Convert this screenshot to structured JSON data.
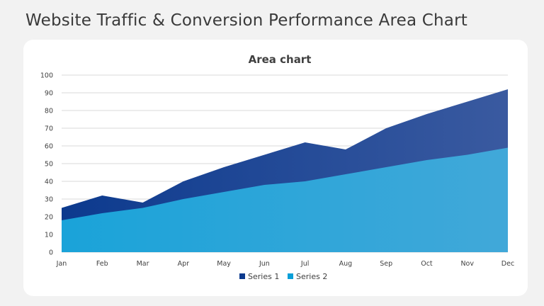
{
  "slide": {
    "title": "Website Traffic & Conversion Performance Area Chart"
  },
  "colors": {
    "series1": "#0c3a8e",
    "series2": "#0a9fd8",
    "grid": "#d9d9d9",
    "background": "#f2f2f2",
    "card": "#ffffff"
  },
  "chart_data": {
    "type": "area",
    "title": "Area chart",
    "xlabel": "",
    "ylabel": "",
    "categories": [
      "Jan",
      "Feb",
      "Mar",
      "Apr",
      "May",
      "Jun",
      "Jul",
      "Aug",
      "Sep",
      "Oct",
      "Nov",
      "Dec"
    ],
    "series": [
      {
        "name": "Series 1",
        "values": [
          25,
          32,
          28,
          40,
          48,
          55,
          62,
          58,
          70,
          78,
          85,
          92
        ]
      },
      {
        "name": "Series 2",
        "values": [
          18,
          22,
          25,
          30,
          34,
          38,
          40,
          44,
          48,
          52,
          55,
          59
        ]
      }
    ],
    "ylim": [
      0,
      100
    ],
    "yticks": [
      0,
      10,
      20,
      30,
      40,
      50,
      60,
      70,
      80,
      90,
      100
    ],
    "grid": true,
    "legend_position": "bottom",
    "stacked": false
  }
}
